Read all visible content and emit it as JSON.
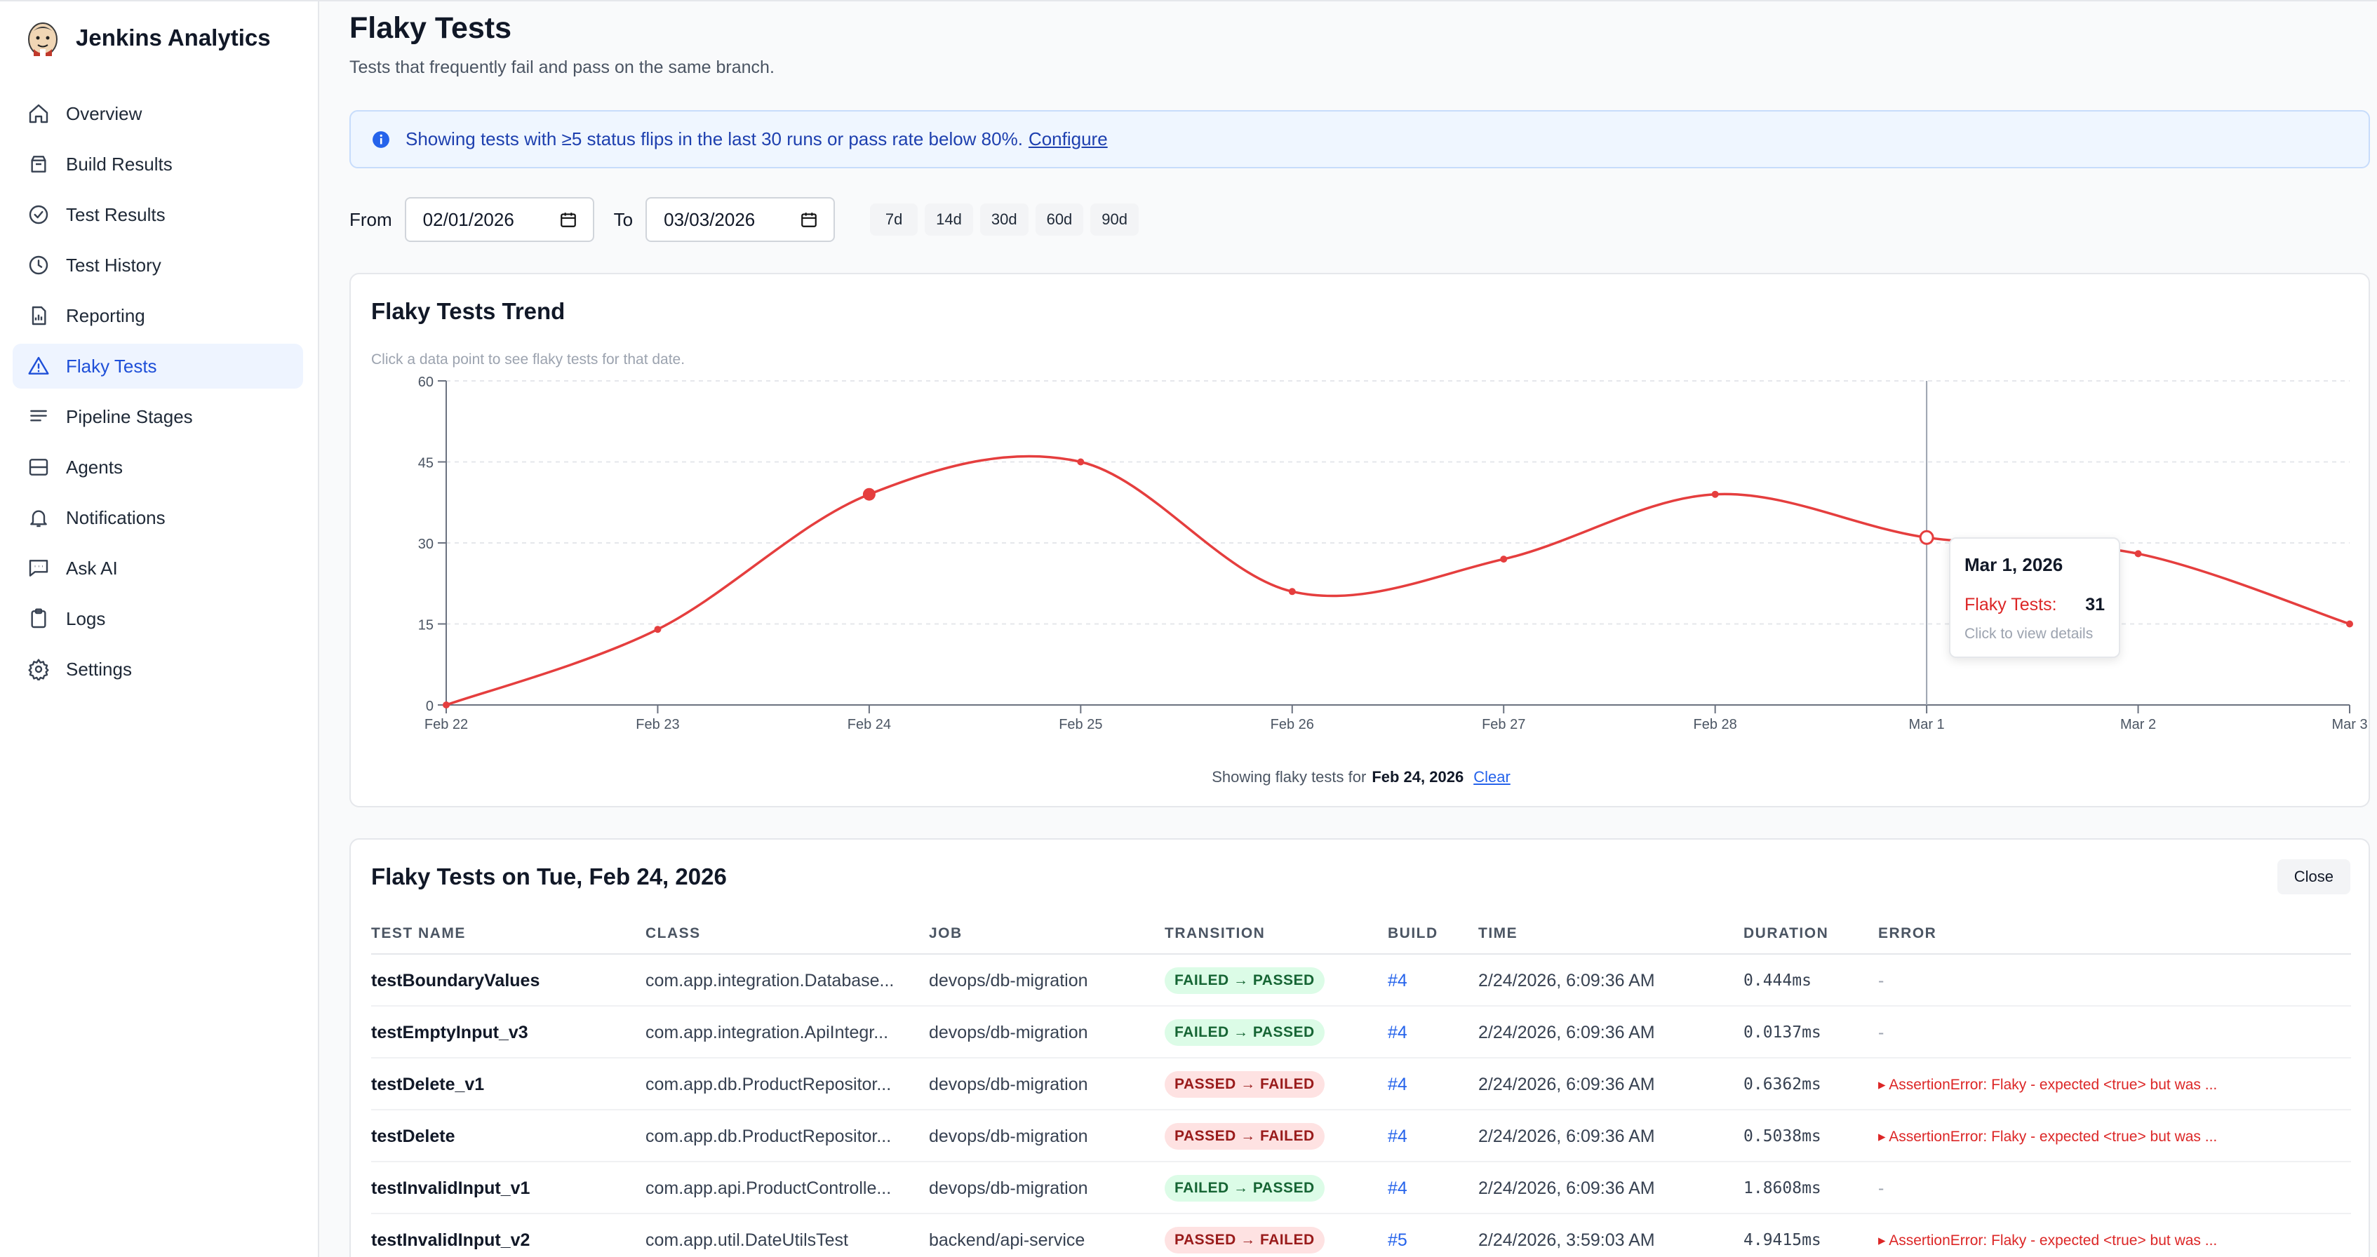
{
  "app": {
    "title": "Jenkins Analytics"
  },
  "sidebar": {
    "items": [
      {
        "label": "Overview",
        "icon": "home-icon",
        "active": false
      },
      {
        "label": "Build Results",
        "icon": "package-icon",
        "active": false
      },
      {
        "label": "Test Results",
        "icon": "check-circle-icon",
        "active": false
      },
      {
        "label": "Test History",
        "icon": "clock-icon",
        "active": false
      },
      {
        "label": "Reporting",
        "icon": "report-icon",
        "active": false
      },
      {
        "label": "Flaky Tests",
        "icon": "warning-triangle-icon",
        "active": true
      },
      {
        "label": "Pipeline Stages",
        "icon": "list-icon",
        "active": false
      },
      {
        "label": "Agents",
        "icon": "server-icon",
        "active": false
      },
      {
        "label": "Notifications",
        "icon": "bell-icon",
        "active": false
      },
      {
        "label": "Ask AI",
        "icon": "chat-icon",
        "active": false
      },
      {
        "label": "Logs",
        "icon": "clipboard-icon",
        "active": false
      },
      {
        "label": "Settings",
        "icon": "gear-icon",
        "active": false
      }
    ]
  },
  "page": {
    "title": "Flaky Tests",
    "subtitle": "Tests that frequently fail and pass on the same branch."
  },
  "banner": {
    "text": "Showing tests with ≥5 status flips in the last 30 runs or pass rate below 80%.",
    "link": "Configure"
  },
  "filters": {
    "from_label": "From",
    "from_value": "02/01/2026",
    "to_label": "To",
    "to_value": "03/03/2026",
    "presets": [
      "7d",
      "14d",
      "30d",
      "60d",
      "90d"
    ]
  },
  "chart": {
    "title": "Flaky Tests Trend",
    "hint": "Click a data point to see flaky tests for that date.",
    "footer_prefix": "Showing flaky tests for",
    "footer_date": "Feb 24, 2026",
    "footer_clear": "Clear",
    "tooltip": {
      "title": "Mar 1, 2026",
      "series": "Flaky Tests:",
      "value": "31",
      "hint": "Click to view details"
    }
  },
  "chart_data": {
    "type": "line",
    "categories": [
      "Feb 22",
      "Feb 23",
      "Feb 24",
      "Feb 25",
      "Feb 26",
      "Feb 27",
      "Feb 28",
      "Mar 1",
      "Mar 2",
      "Mar 3"
    ],
    "series": [
      {
        "name": "Flaky Tests",
        "values": [
          0,
          14,
          39,
          45,
          21,
          27,
          39,
          31,
          28,
          15
        ],
        "color": "#e53e3e"
      }
    ],
    "yticks": [
      0,
      15,
      30,
      45,
      60
    ],
    "ylim": [
      0,
      60
    ],
    "grid": true,
    "selected_index": 2,
    "hover_index": 7
  },
  "table": {
    "title": "Flaky Tests on Tue, Feb 24, 2026",
    "close_label": "Close",
    "headers": [
      "TEST NAME",
      "CLASS",
      "JOB",
      "TRANSITION",
      "BUILD",
      "TIME",
      "DURATION",
      "ERROR"
    ],
    "rows": [
      {
        "name": "testBoundaryValues",
        "class": "com.app.integration.Database...",
        "job": "devops/db-migration",
        "transition": "FAILED → PASSED",
        "status": "good",
        "build": "#4",
        "time": "2/24/2026, 6:09:36 AM",
        "duration": "0.444ms",
        "error": "-"
      },
      {
        "name": "testEmptyInput_v3",
        "class": "com.app.integration.ApiIntegr...",
        "job": "devops/db-migration",
        "transition": "FAILED → PASSED",
        "status": "good",
        "build": "#4",
        "time": "2/24/2026, 6:09:36 AM",
        "duration": "0.0137ms",
        "error": "-"
      },
      {
        "name": "testDelete_v1",
        "class": "com.app.db.ProductRepositor...",
        "job": "devops/db-migration",
        "transition": "PASSED → FAILED",
        "status": "bad",
        "build": "#4",
        "time": "2/24/2026, 6:09:36 AM",
        "duration": "0.6362ms",
        "error": "▸ AssertionError: Flaky - expected <true> but was ..."
      },
      {
        "name": "testDelete",
        "class": "com.app.db.ProductRepositor...",
        "job": "devops/db-migration",
        "transition": "PASSED → FAILED",
        "status": "bad",
        "build": "#4",
        "time": "2/24/2026, 6:09:36 AM",
        "duration": "0.5038ms",
        "error": "▸ AssertionError: Flaky - expected <true> but was ..."
      },
      {
        "name": "testInvalidInput_v1",
        "class": "com.app.api.ProductControlle...",
        "job": "devops/db-migration",
        "transition": "FAILED → PASSED",
        "status": "good",
        "build": "#4",
        "time": "2/24/2026, 6:09:36 AM",
        "duration": "1.8608ms",
        "error": "-"
      },
      {
        "name": "testInvalidInput_v2",
        "class": "com.app.util.DateUtilsTest",
        "job": "backend/api-service",
        "transition": "PASSED → FAILED",
        "status": "bad",
        "build": "#5",
        "time": "2/24/2026, 3:59:03 AM",
        "duration": "4.9415ms",
        "error": "▸ AssertionError: Flaky - expected <true> but was ..."
      }
    ]
  }
}
